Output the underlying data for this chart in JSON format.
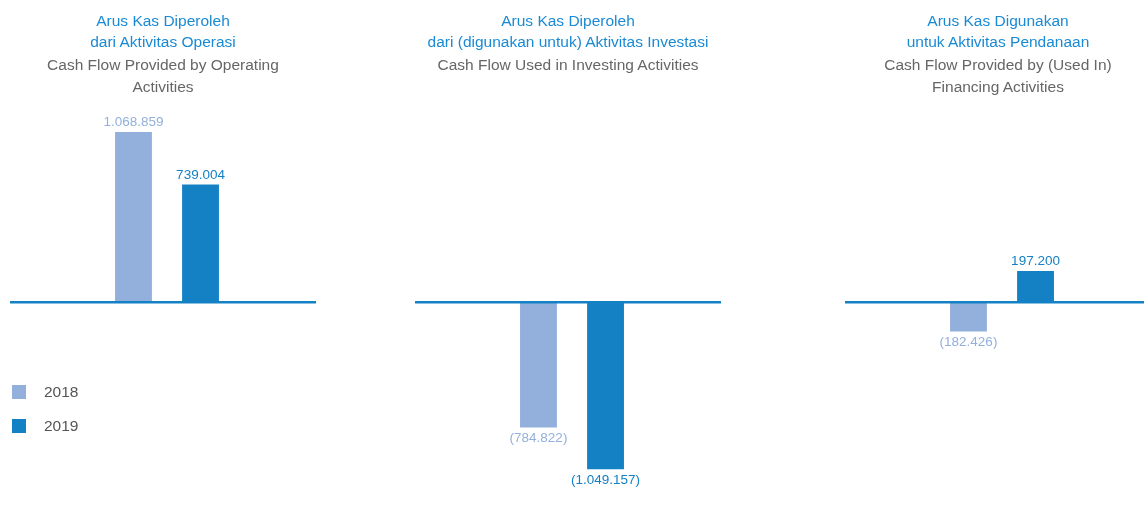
{
  "chart_data": [
    {
      "type": "bar",
      "title": "Arus Kas Diperoleh\ndari Aktivitas Operasi",
      "subtitle": "Cash Flow Provided by Operating Activities",
      "categories": [
        null
      ],
      "legend": "bottom left",
      "ref_lines": [
        {
          "axis": "y",
          "value": 0,
          "color": "#1581c5"
        }
      ],
      "series": [
        {
          "name": "2018",
          "color": "#93b0dc",
          "values": [
            1068859
          ],
          "value_labels": [
            "1.068.859"
          ]
        },
        {
          "name": "2019",
          "color": "#1581c5",
          "values": [
            739004
          ],
          "value_labels": [
            "739.004"
          ]
        }
      ]
    },
    {
      "type": "bar",
      "title": "Arus Kas Diperoleh\ndari (digunakan untuk) Aktivitas Investasi",
      "subtitle": "Cash Flow Used in Investing Activities",
      "categories": [
        null
      ],
      "legend": false,
      "ref_lines": [
        {
          "axis": "y",
          "value": 0,
          "color": "#1581c5"
        }
      ],
      "series": [
        {
          "name": "2018",
          "color": "#93b0dc",
          "values": [
            -784822
          ],
          "value_labels": [
            "(784.822)"
          ]
        },
        {
          "name": "2019",
          "color": "#1581c5",
          "values": [
            -1049157
          ],
          "value_labels": [
            "(1.049.157)"
          ]
        }
      ]
    },
    {
      "type": "bar",
      "title": "Arus Kas Digunakan\nuntuk Aktivitas Pendanaan",
      "subtitle": "Cash Flow Provided by (Used In) Financing Activities",
      "categories": [
        null
      ],
      "legend": false,
      "ref_lines": [
        {
          "axis": "y",
          "value": 0,
          "color": "#1581c5"
        }
      ],
      "series": [
        {
          "name": "2018",
          "color": "#93b0dc",
          "values": [
            -182426
          ],
          "value_labels": [
            "(182.426)"
          ]
        },
        {
          "name": "2019",
          "color": "#1581c5",
          "values": [
            197200
          ],
          "value_labels": [
            "197.200"
          ]
        }
      ]
    }
  ]
}
